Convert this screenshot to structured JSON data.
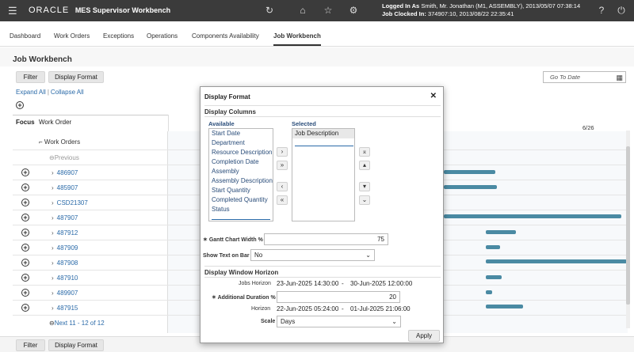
{
  "header": {
    "brand": "ORACLE",
    "app_title": "MES Supervisor Workbench",
    "logged_in_label": "Logged In As",
    "logged_in_value": "Smith, Mr. Jonathan (M1, ASSEMBLY), 2013/05/07 07:38:14",
    "job_clocked_label": "Job Clocked In:",
    "job_clocked_value": "374907:10, 2013/08/22 22:35:41",
    "icons": [
      "menu-icon",
      "refresh-icon",
      "home-icon",
      "star-icon",
      "gear-icon",
      "help-icon",
      "power-icon"
    ]
  },
  "nav": {
    "tabs": [
      "Dashboard",
      "Work Orders",
      "Exceptions",
      "Operations",
      "Components Availability",
      "Job Workbench"
    ],
    "active": "Job Workbench"
  },
  "page": {
    "title": "Job Workbench",
    "filter_label": "Filter",
    "display_format_label": "Display Format",
    "goto_placeholder": "Go To Date",
    "expand_all": "Expand All",
    "separator": "|",
    "collapse_all": "Collapse All"
  },
  "grid": {
    "col_focus": "Focus",
    "col_work_order": "Work Order",
    "date_label": "6/26",
    "group_label": "Work Orders",
    "previous_label": "Previous",
    "next_label": "Next 11 - 12 of 12",
    "rows": [
      {
        "id": "486907"
      },
      {
        "id": "485907"
      },
      {
        "id": "CSD21307"
      },
      {
        "id": "487907"
      },
      {
        "id": "487912"
      },
      {
        "id": "487909"
      },
      {
        "id": "487908"
      },
      {
        "id": "487910"
      },
      {
        "id": "489907"
      },
      {
        "id": "487915"
      }
    ]
  },
  "modal": {
    "title": "Display Format",
    "display_columns": "Display Columns",
    "available_label": "Available",
    "selected_label": "Selected",
    "available_items": [
      "Start Date",
      "Department",
      "Resource Description",
      "Completion Date",
      "Assembly",
      "Assembly Description",
      "Start Quantity",
      "Completed Quantity",
      "Status"
    ],
    "selected_items": [
      "Job Description"
    ],
    "gantt_width_label": "Gantt Chart Width %",
    "gantt_width_value": "75",
    "show_text_label": "Show Text on Bar",
    "show_text_value": "No",
    "window_horizon": "Display Window Horizon",
    "jobs_horizon_label": "Jobs Horizon",
    "jobs_horizon_start": "23-Jun-2025 14:30:00",
    "jobs_horizon_dash": "-",
    "jobs_horizon_end": "30-Jun-2025 12:00:00",
    "additional_duration_label": "Additional Duration %",
    "additional_duration_value": "20",
    "horizon_label": "Horizon",
    "horizon_start": "22-Jun-2025 05:24:00",
    "horizon_dash": "-",
    "horizon_end": "01-Jul-2025 21:06:00",
    "scale_label": "Scale",
    "scale_value": "Days",
    "apply_label": "Apply",
    "required_mark": "✶"
  },
  "footer": {
    "filter_label": "Filter",
    "display_format_label": "Display Format"
  },
  "colors": {
    "header_bg": "#3b3b3b",
    "link": "#2a6aa8",
    "gantt_bar": "#4a8aa3"
  }
}
